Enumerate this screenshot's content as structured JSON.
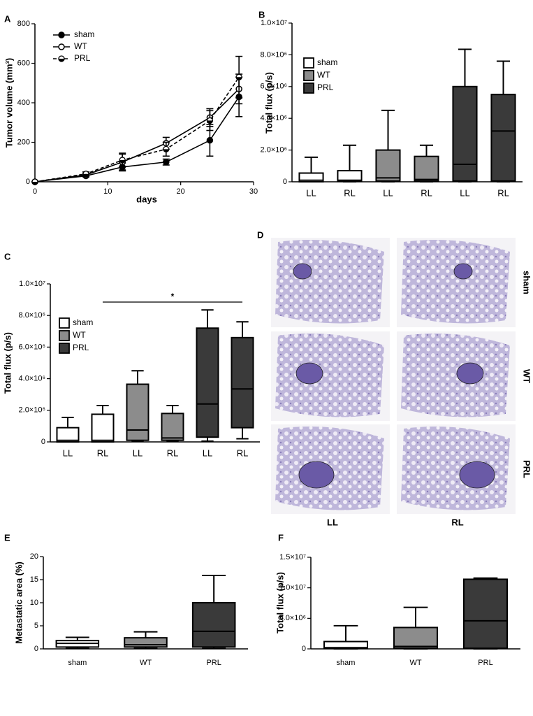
{
  "chart_data": [
    {
      "type": "line",
      "panel_label": "A",
      "x_label": "days",
      "y_label": "Tumor volume (mm³)",
      "x": [
        0,
        7,
        12,
        18,
        24,
        28
      ],
      "xlim": [
        0,
        30
      ],
      "xticks": [
        0,
        10,
        20,
        30
      ],
      "ylim": [
        0,
        800
      ],
      "yticks": [
        0,
        200,
        400,
        600,
        800
      ],
      "legend": "upper left",
      "series": [
        {
          "name": "sham",
          "color": "#000000",
          "marker": "filled",
          "line_style": "solid",
          "values": [
            0,
            30,
            75,
            100,
            210,
            430
          ],
          "errors": [
            0,
            5,
            20,
            15,
            80,
            100
          ]
        },
        {
          "name": "WT",
          "color": "#000000",
          "marker": "open",
          "line_style": "solid",
          "values": [
            0,
            35,
            100,
            195,
            325,
            470
          ],
          "errors": [
            0,
            8,
            40,
            30,
            45,
            75
          ]
        },
        {
          "name": "PRL",
          "color": "#000000",
          "marker": "half",
          "line_style": "dashed",
          "values": [
            0,
            40,
            110,
            165,
            310,
            530
          ],
          "errors": [
            0,
            10,
            35,
            35,
            50,
            105
          ]
        }
      ]
    },
    {
      "type": "box",
      "panel_label": "B",
      "y_label": "Total flux (p/s)",
      "ylim": [
        0,
        10000000
      ],
      "yticks": [
        0,
        {
          "value": 2000000,
          "label": "2.0×10⁶"
        },
        {
          "value": 4000000,
          "label": "4.0×10⁶"
        },
        {
          "value": 6000000,
          "label": "6.0×10⁶"
        },
        {
          "value": 8000000,
          "label": "8.0×10⁶"
        },
        {
          "value": 10000000,
          "label": "1.0×10⁷"
        }
      ],
      "legend": "upper left",
      "series": [
        {
          "name": "sham",
          "color": "#ffffff",
          "categories": [
            "LL",
            "RL"
          ],
          "min": [
            0,
            0
          ],
          "q1": [
            0,
            20000
          ],
          "median": [
            100000,
            100000
          ],
          "q3": [
            550000,
            700000
          ],
          "max": [
            1550000,
            2300000
          ]
        },
        {
          "name": "WT",
          "color": "#8c8c8c",
          "categories": [
            "LL",
            "RL"
          ],
          "min": [
            0,
            0
          ],
          "q1": [
            50000,
            50000
          ],
          "median": [
            250000,
            150000
          ],
          "q3": [
            2000000,
            1600000
          ],
          "max": [
            4500000,
            2300000
          ]
        },
        {
          "name": "PRL",
          "color": "#3a3a3a",
          "categories": [
            "LL",
            "RL"
          ],
          "min": [
            0,
            0
          ],
          "q1": [
            50000,
            50000
          ],
          "median": [
            1100000,
            3200000
          ],
          "q3": [
            6000000,
            5500000
          ],
          "max": [
            8350000,
            7600000
          ]
        }
      ]
    },
    {
      "type": "box",
      "panel_label": "C",
      "y_label": "Total flux (p/s)",
      "ylim": [
        0,
        10000000
      ],
      "yticks": [
        0,
        {
          "value": 2000000,
          "label": "2.0×10⁶"
        },
        {
          "value": 4000000,
          "label": "4.0×10⁶"
        },
        {
          "value": 6000000,
          "label": "6.0×10⁶"
        },
        {
          "value": 8000000,
          "label": "8.0×10⁶"
        },
        {
          "value": 10000000,
          "label": "1.0×10⁷"
        }
      ],
      "legend": "upper left",
      "significance": {
        "text": "*",
        "from": 1,
        "to": 5
      },
      "series": [
        {
          "name": "sham",
          "color": "#ffffff",
          "categories": [
            "LL",
            "RL"
          ],
          "min": [
            0,
            0
          ],
          "q1": [
            0,
            0
          ],
          "median": [
            100000,
            100000
          ],
          "q3": [
            900000,
            1750000
          ],
          "max": [
            1550000,
            2300000
          ]
        },
        {
          "name": "WT",
          "color": "#8c8c8c",
          "categories": [
            "LL",
            "RL"
          ],
          "min": [
            50000,
            50000
          ],
          "q1": [
            100000,
            100000
          ],
          "median": [
            750000,
            250000
          ],
          "q3": [
            3650000,
            1800000
          ],
          "max": [
            4500000,
            2300000
          ]
        },
        {
          "name": "PRL",
          "color": "#3a3a3a",
          "categories": [
            "LL",
            "RL"
          ],
          "min": [
            50000,
            200000
          ],
          "q1": [
            300000,
            900000
          ],
          "median": [
            2400000,
            3350000
          ],
          "q3": [
            7200000,
            6600000
          ],
          "max": [
            8350000,
            7600000
          ]
        }
      ]
    },
    {
      "type": "box",
      "panel_label": "E",
      "y_label": "Metastatic area (%)",
      "ylim": [
        0,
        20
      ],
      "yticks": [
        0,
        5,
        10,
        15,
        20
      ],
      "series": [
        {
          "color": "#ffffff",
          "categories": [
            "sham"
          ],
          "min": [
            0.1
          ],
          "q1": [
            0.4
          ],
          "median": [
            1.2
          ],
          "q3": [
            1.8
          ],
          "max": [
            2.5
          ]
        },
        {
          "color": "#8c8c8c",
          "categories": [
            "WT"
          ],
          "min": [
            0.1
          ],
          "q1": [
            0.4
          ],
          "median": [
            0.9
          ],
          "q3": [
            2.4
          ],
          "max": [
            3.7
          ]
        },
        {
          "color": "#3a3a3a",
          "categories": [
            "PRL"
          ],
          "min": [
            0.1
          ],
          "q1": [
            0.4
          ],
          "median": [
            3.8
          ],
          "q3": [
            10.0
          ],
          "max": [
            15.9
          ]
        }
      ]
    },
    {
      "type": "box",
      "panel_label": "F",
      "y_label": "Total flux (p/s)",
      "ylim": [
        0,
        15000000
      ],
      "yticks": [
        0,
        {
          "value": 5000000,
          "label": "5.0×10⁶"
        },
        {
          "value": 10000000,
          "label": "1.0×10⁷"
        },
        {
          "value": 15000000,
          "label": "1.5×10⁷"
        }
      ],
      "series": [
        {
          "color": "#ffffff",
          "categories": [
            "sham"
          ],
          "min": [
            0
          ],
          "q1": [
            50000
          ],
          "median": [
            200000
          ],
          "q3": [
            1200000
          ],
          "max": [
            3800000
          ]
        },
        {
          "color": "#8c8c8c",
          "categories": [
            "WT"
          ],
          "min": [
            0
          ],
          "q1": [
            100000
          ],
          "median": [
            400000
          ],
          "q3": [
            3500000
          ],
          "max": [
            6800000
          ]
        },
        {
          "color": "#3a3a3a",
          "categories": [
            "PRL"
          ],
          "min": [
            0
          ],
          "q1": [
            100000
          ],
          "median": [
            4600000
          ],
          "q3": [
            11400000
          ],
          "max": [
            11600000
          ]
        }
      ]
    }
  ],
  "image_panel": {
    "panel_label": "D",
    "rows": [
      "sham",
      "WT",
      "PRL"
    ],
    "columns": [
      "LL",
      "RL"
    ]
  }
}
